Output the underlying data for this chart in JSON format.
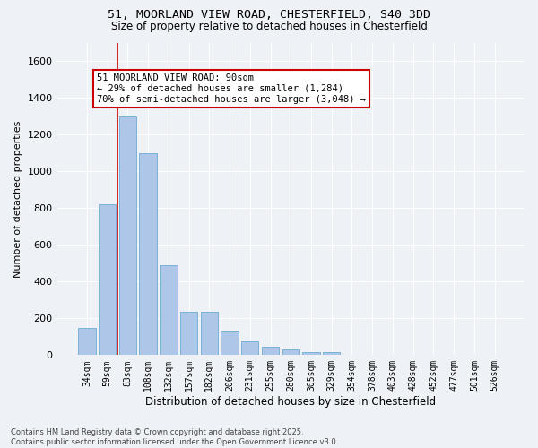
{
  "title_line1": "51, MOORLAND VIEW ROAD, CHESTERFIELD, S40 3DD",
  "title_line2": "Size of property relative to detached houses in Chesterfield",
  "xlabel": "Distribution of detached houses by size in Chesterfield",
  "ylabel": "Number of detached properties",
  "categories": [
    "34sqm",
    "59sqm",
    "83sqm",
    "108sqm",
    "132sqm",
    "157sqm",
    "182sqm",
    "206sqm",
    "231sqm",
    "255sqm",
    "280sqm",
    "305sqm",
    "329sqm",
    "354sqm",
    "378sqm",
    "403sqm",
    "428sqm",
    "452sqm",
    "477sqm",
    "501sqm",
    "526sqm"
  ],
  "values": [
    150,
    820,
    1300,
    1100,
    490,
    235,
    235,
    135,
    75,
    45,
    30,
    18,
    18,
    2,
    2,
    2,
    2,
    2,
    2,
    2,
    2
  ],
  "bar_color": "#aec6e8",
  "bar_edge_color": "#6aaad4",
  "vline_x_idx": 1.5,
  "annotation_title": "51 MOORLAND VIEW ROAD: 90sqm",
  "annotation_line1": "← 29% of detached houses are smaller (1,284)",
  "annotation_line2": "70% of semi-detached houses are larger (3,048) →",
  "annotation_box_facecolor": "#ffffff",
  "annotation_box_edgecolor": "#cc0000",
  "vline_color": "#cc0000",
  "ylim": [
    0,
    1700
  ],
  "yticks": [
    0,
    200,
    400,
    600,
    800,
    1000,
    1200,
    1400,
    1600
  ],
  "background_color": "#eef2f7",
  "grid_color": "#ffffff",
  "footer_line1": "Contains HM Land Registry data © Crown copyright and database right 2025.",
  "footer_line2": "Contains public sector information licensed under the Open Government Licence v3.0."
}
